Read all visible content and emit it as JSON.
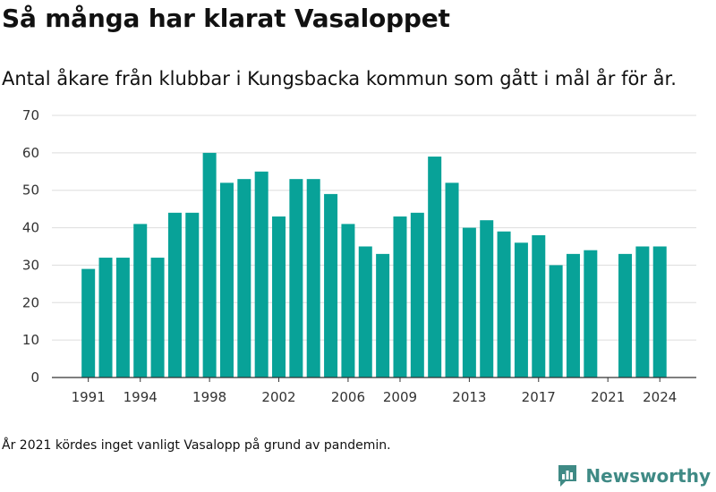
{
  "title": "Så många har klarat Vasaloppet",
  "subtitle": "Antal åkare från klubbar i Kungsbacka kommun som gått i mål år för år.",
  "footnote": "År 2021 kördes inget vanligt Vasalopp på grund av pandemin.",
  "brand": {
    "name": "Newsworthy",
    "icon": "newsworthy-logo-icon",
    "color": "#3f8a85"
  },
  "colors": {
    "bar": "#08a298",
    "grid": "#dddddd",
    "axis": "#333333"
  },
  "chart_data": {
    "type": "bar",
    "x": [
      1991,
      1992,
      1993,
      1994,
      1995,
      1996,
      1997,
      1998,
      1999,
      2000,
      2001,
      2002,
      2003,
      2004,
      2005,
      2006,
      2007,
      2008,
      2009,
      2010,
      2011,
      2012,
      2013,
      2014,
      2015,
      2016,
      2017,
      2018,
      2019,
      2020,
      2021,
      2022,
      2023,
      2024
    ],
    "values": [
      29,
      32,
      32,
      41,
      32,
      44,
      44,
      60,
      52,
      53,
      55,
      43,
      53,
      53,
      49,
      41,
      35,
      33,
      43,
      44,
      59,
      52,
      40,
      42,
      39,
      36,
      38,
      30,
      33,
      34,
      null,
      33,
      35,
      35
    ],
    "x_ticks": [
      1991,
      1994,
      1998,
      2002,
      2006,
      2009,
      2013,
      2017,
      2021,
      2024
    ],
    "y_ticks": [
      0,
      10,
      20,
      30,
      40,
      50,
      60,
      70
    ],
    "ylim": [
      0,
      70
    ],
    "grid": true
  }
}
